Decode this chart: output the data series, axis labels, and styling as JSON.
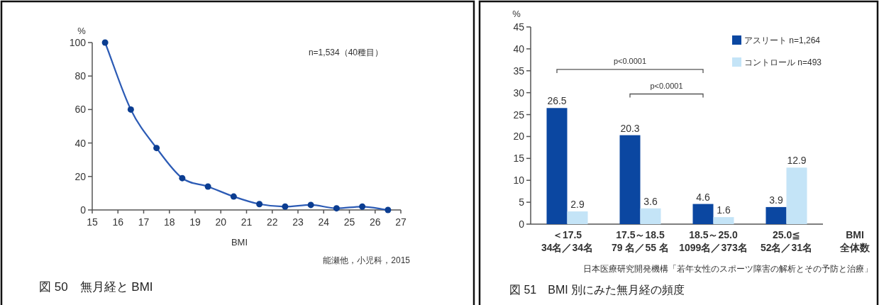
{
  "chart_data": [
    {
      "type": "line",
      "title": "図 50　無月経と BMI",
      "xlabel": "BMI",
      "ylabel": "%",
      "x": [
        15.5,
        16.5,
        17.5,
        18.5,
        19.5,
        20.5,
        21.5,
        22.5,
        23.5,
        24.5,
        25.5,
        26.5
      ],
      "series": [
        {
          "color": "#2c5bb5",
          "values": [
            100,
            60,
            37,
            19,
            14,
            8,
            3.5,
            2,
            3,
            1,
            2,
            0
          ]
        }
      ],
      "xlim": [
        15,
        27
      ],
      "xticks": [
        15,
        16,
        17,
        18,
        19,
        20,
        21,
        22,
        23,
        24,
        25,
        26,
        27
      ],
      "ylim": [
        0,
        100
      ],
      "yticks": [
        0,
        20,
        40,
        60,
        80,
        100
      ],
      "marker": "circle",
      "line_style": "solid",
      "annotations": [
        "n=1,534（40種目）",
        "能瀬他，小児科，2015"
      ]
    },
    {
      "type": "bar",
      "title": "図 51　BMI 別にみた無月経の頻度",
      "xlabel": "BMI\n全体数",
      "ylabel": "%",
      "categories": [
        "＜17.5\n34名／34名",
        "17.5～18.5\n79 名／55 名",
        "18.5～25.0\n1099名／373名",
        "25.0≦\n52名／31名"
      ],
      "series": [
        {
          "name": "アスリート n=1,264",
          "color": "#0b47a1",
          "values": [
            26.5,
            20.3,
            4.6,
            3.9
          ]
        },
        {
          "name": "コントロール n=493",
          "color": "#c4e4f7",
          "values": [
            2.9,
            3.6,
            1.6,
            12.9
          ]
        }
      ],
      "ylim": [
        0,
        45
      ],
      "yticks": [
        0,
        5,
        10,
        15,
        20,
        25,
        30,
        35,
        40,
        45
      ],
      "data_labels": true,
      "legend": "top right",
      "annotations": [
        "p<0.0001",
        "p<0.0001",
        "日本医療研究開発機構「若年女性のスポーツ障害の解析とその予防と治療」"
      ]
    }
  ]
}
